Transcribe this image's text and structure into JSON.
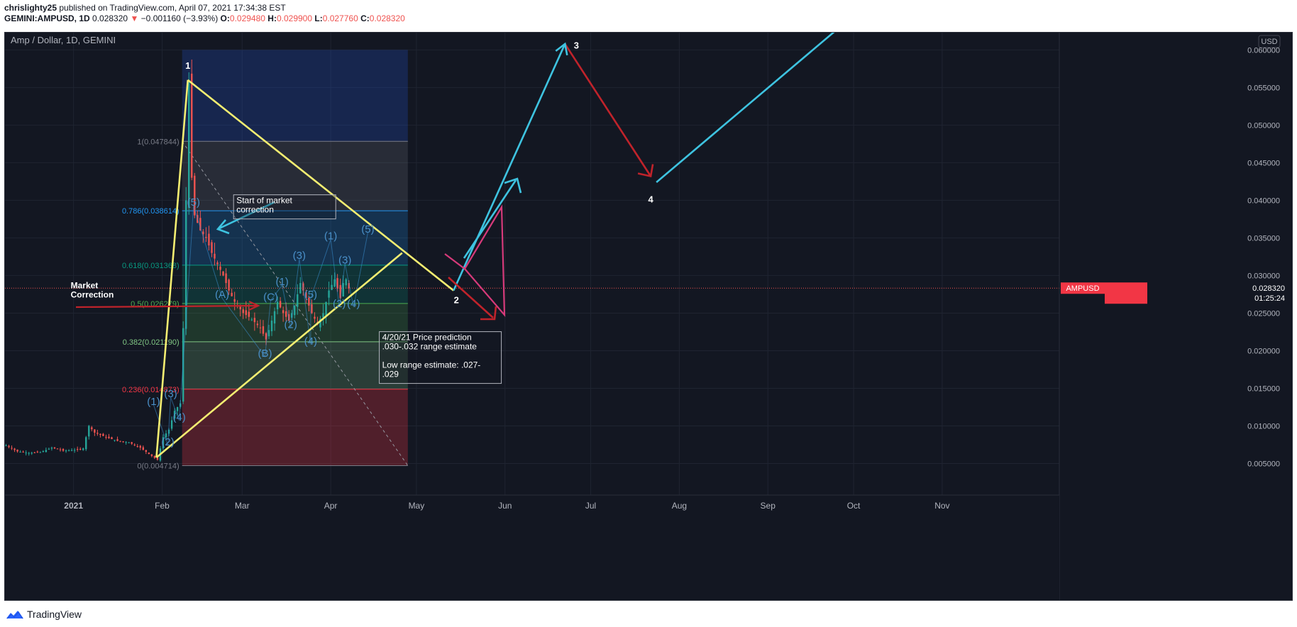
{
  "header": {
    "line1_user": "chrislighty25",
    "line1_rest": " published on TradingView.com, April 07, 2021 17:34:38 EST",
    "symbol": "GEMINI:AMPUSD, 1D",
    "price": "0.028320",
    "arrow": "▼",
    "change": "−0.001160 (−3.93%)",
    "o_label": "O:",
    "o_val": "0.029480",
    "h_label": "H:",
    "h_val": "0.029900",
    "l_label": "L:",
    "l_val": "0.027760",
    "c_label": "C:",
    "c_val": "0.028320"
  },
  "footer": {
    "brand": "TradingView"
  },
  "chart_data": {
    "type": "candlestick",
    "title": "Amp / Dollar, 1D, GEMINI",
    "currency_badge": "USD",
    "y_scale": "linear",
    "ylim": [
      0.0008,
      0.0623
    ],
    "xlim": [
      "2020-12-08",
      "2021-12-12"
    ],
    "y_ticks": [
      "0.060000",
      "0.055000",
      "0.050000",
      "0.045000",
      "0.040000",
      "0.035000",
      "0.030000",
      "0.025000",
      "0.020000",
      "0.015000",
      "0.010000",
      "0.005000"
    ],
    "y_tick_values": [
      0.06,
      0.055,
      0.05,
      0.045,
      0.04,
      0.035,
      0.03,
      0.025,
      0.02,
      0.015,
      0.01,
      0.005
    ],
    "x_ticks": [
      {
        "date": "2021-01-01",
        "label": "2021"
      },
      {
        "date": "2021-02-01",
        "label": "Feb"
      },
      {
        "date": "2021-03-01",
        "label": "Mar"
      },
      {
        "date": "2021-04-01",
        "label": "Apr"
      },
      {
        "date": "2021-05-01",
        "label": "May"
      },
      {
        "date": "2021-06-01",
        "label": "Jun"
      },
      {
        "date": "2021-07-01",
        "label": "Jul"
      },
      {
        "date": "2021-08-01",
        "label": "Aug"
      },
      {
        "date": "2021-09-01",
        "label": "Sep"
      },
      {
        "date": "2021-10-01",
        "label": "Oct"
      },
      {
        "date": "2021-11-01",
        "label": "Nov"
      }
    ],
    "last_price": {
      "value": 0.02832,
      "symbol": "AMPUSD",
      "price_label": "0.028320",
      "countdown": "01:25:24"
    },
    "price_path": [
      [
        "2020-12-08",
        0.0074
      ],
      [
        "2020-12-12",
        0.0066
      ],
      [
        "2020-12-16",
        0.0064
      ],
      [
        "2020-12-20",
        0.0065
      ],
      [
        "2020-12-24",
        0.0071
      ],
      [
        "2020-12-28",
        0.0067
      ],
      [
        "2021-01-01",
        0.0068
      ],
      [
        "2021-01-04",
        0.007
      ],
      [
        "2021-01-06",
        0.01
      ],
      [
        "2021-01-08",
        0.0091
      ],
      [
        "2021-01-12",
        0.0085
      ],
      [
        "2021-01-16",
        0.008
      ],
      [
        "2021-01-20",
        0.0078
      ],
      [
        "2021-01-24",
        0.0071
      ],
      [
        "2021-01-28",
        0.006
      ],
      [
        "2021-01-30",
        0.0055
      ],
      [
        "2021-02-01",
        0.0085
      ],
      [
        "2021-02-03",
        0.0095
      ],
      [
        "2021-02-05",
        0.012
      ],
      [
        "2021-02-07",
        0.013
      ],
      [
        "2021-02-08",
        0.023
      ],
      [
        "2021-02-09",
        0.04
      ],
      [
        "2021-02-10",
        0.056
      ],
      [
        "2021-02-11",
        0.043
      ],
      [
        "2021-02-12",
        0.038
      ],
      [
        "2021-02-14",
        0.036
      ],
      [
        "2021-02-16",
        0.035
      ],
      [
        "2021-02-18",
        0.033
      ],
      [
        "2021-02-20",
        0.0315
      ],
      [
        "2021-02-22",
        0.03
      ],
      [
        "2021-02-24",
        0.028
      ],
      [
        "2021-02-26",
        0.0265
      ],
      [
        "2021-03-01",
        0.025
      ],
      [
        "2021-03-03",
        0.0245
      ],
      [
        "2021-03-05",
        0.0238
      ],
      [
        "2021-03-07",
        0.023
      ],
      [
        "2021-03-09",
        0.0215
      ],
      [
        "2021-03-11",
        0.024
      ],
      [
        "2021-03-13",
        0.0265
      ],
      [
        "2021-03-15",
        0.025
      ],
      [
        "2021-03-17",
        0.024
      ],
      [
        "2021-03-19",
        0.026
      ],
      [
        "2021-03-21",
        0.029
      ],
      [
        "2021-03-23",
        0.027
      ],
      [
        "2021-03-25",
        0.025
      ],
      [
        "2021-03-27",
        0.0235
      ],
      [
        "2021-03-29",
        0.025
      ],
      [
        "2021-03-31",
        0.028
      ],
      [
        "2021-04-02",
        0.0295
      ],
      [
        "2021-04-04",
        0.027
      ],
      [
        "2021-04-05",
        0.029
      ],
      [
        "2021-04-06",
        0.0295
      ],
      [
        "2021-04-07",
        0.02832
      ]
    ],
    "fib_levels": [
      {
        "ratio": "1",
        "value": 0.047844,
        "label": "1(0.047844)",
        "color": "#787b86"
      },
      {
        "ratio": "0.786",
        "value": 0.038614,
        "label": "0.786(0.038614)",
        "color": "#2196f3"
      },
      {
        "ratio": "0.618",
        "value": 0.031368,
        "label": "0.618(0.031368)",
        "color": "#089981"
      },
      {
        "ratio": "0.5",
        "value": 0.026279,
        "label": "0.5(0.026279)",
        "color": "#4caf50"
      },
      {
        "ratio": "0.382",
        "value": 0.02119,
        "label": "0.382(0.021190)",
        "color": "#81c784"
      },
      {
        "ratio": "0.236",
        "value": 0.014873,
        "label": "0.236(0.014873)",
        "color": "#f23645"
      },
      {
        "ratio": "0",
        "value": 0.004714,
        "label": "0(0.004714)",
        "color": "#787b86"
      }
    ],
    "fib_range": {
      "start": "2021-02-08",
      "end": "2021-04-28",
      "top": 0.06
    },
    "yellow_lines": [
      [
        [
          "2021-01-30",
          0.0058
        ],
        [
          "2021-02-10",
          0.056
        ]
      ],
      [
        [
          "2021-02-10",
          0.056
        ],
        [
          "2021-05-14",
          0.028
        ]
      ],
      [
        [
          "2021-01-30",
          0.0058
        ],
        [
          "2021-04-26",
          0.033
        ]
      ]
    ],
    "projection_cyan": [
      [
        [
          "2021-05-14",
          0.028
        ],
        [
          "2021-06-22",
          0.0608
        ]
      ],
      [
        [
          "2021-07-24",
          0.0424
        ],
        [
          "2021-09-27",
          0.0633
        ]
      ]
    ],
    "projection_red": [
      [
        "2021-06-22",
        0.0608
      ],
      [
        "2021-07-22",
        0.0432
      ]
    ],
    "wave_labels_main": [
      {
        "t": "1",
        "date": "2021-02-10",
        "value": 0.0575
      },
      {
        "t": "2",
        "date": "2021-05-15",
        "value": 0.0263
      },
      {
        "t": "3",
        "date": "2021-06-26",
        "value": 0.0602
      },
      {
        "t": "4",
        "date": "2021-07-22",
        "value": 0.0397
      }
    ],
    "wave_labels_sub": [
      {
        "t": "(1)",
        "date": "2021-01-29",
        "value": 0.0128
      },
      {
        "t": "(2)",
        "date": "2021-02-03",
        "value": 0.0074
      },
      {
        "t": "(3)",
        "date": "2021-02-04",
        "value": 0.0138
      },
      {
        "t": "(4)",
        "date": "2021-02-07",
        "value": 0.0107
      },
      {
        "t": "(5)",
        "date": "2021-02-12",
        "value": 0.0393
      },
      {
        "t": "(A)",
        "date": "2021-02-22",
        "value": 0.027
      },
      {
        "t": "(B)",
        "date": "2021-03-09",
        "value": 0.0192
      },
      {
        "t": "(C)",
        "date": "2021-03-11",
        "value": 0.0267
      },
      {
        "t": "(1)",
        "date": "2021-03-15",
        "value": 0.0287
      },
      {
        "t": "(2)",
        "date": "2021-03-18",
        "value": 0.023
      },
      {
        "t": "(3)",
        "date": "2021-03-21",
        "value": 0.0322
      },
      {
        "t": "(4)",
        "date": "2021-03-25",
        "value": 0.0208
      },
      {
        "t": "(5)",
        "date": "2021-03-25",
        "value": 0.027
      },
      {
        "t": "(1)",
        "date": "2021-04-01",
        "value": 0.0348
      },
      {
        "t": "(2)",
        "date": "2021-04-04",
        "value": 0.0258
      },
      {
        "t": "(3)",
        "date": "2021-04-06",
        "value": 0.0316
      },
      {
        "t": "(4)",
        "date": "2021-04-09",
        "value": 0.0258
      },
      {
        "t": "(5)",
        "date": "2021-04-14",
        "value": 0.0357
      }
    ],
    "annotations": [
      {
        "id": "start-correction",
        "lines": [
          "Start of market",
          "correction"
        ],
        "date": "2021-02-27",
        "value": 0.0396
      },
      {
        "id": "prediction",
        "lines": [
          "4/20/21 Price prediction",
          ".030-.032 range estimate",
          "",
          "Low range estimate: .027-",
          ".029"
        ],
        "date": "2021-04-19",
        "value": 0.0214
      },
      {
        "id": "market-correction",
        "lines": [
          "Market",
          "Correction"
        ],
        "date": "2020-12-31",
        "value": 0.0283
      }
    ]
  }
}
